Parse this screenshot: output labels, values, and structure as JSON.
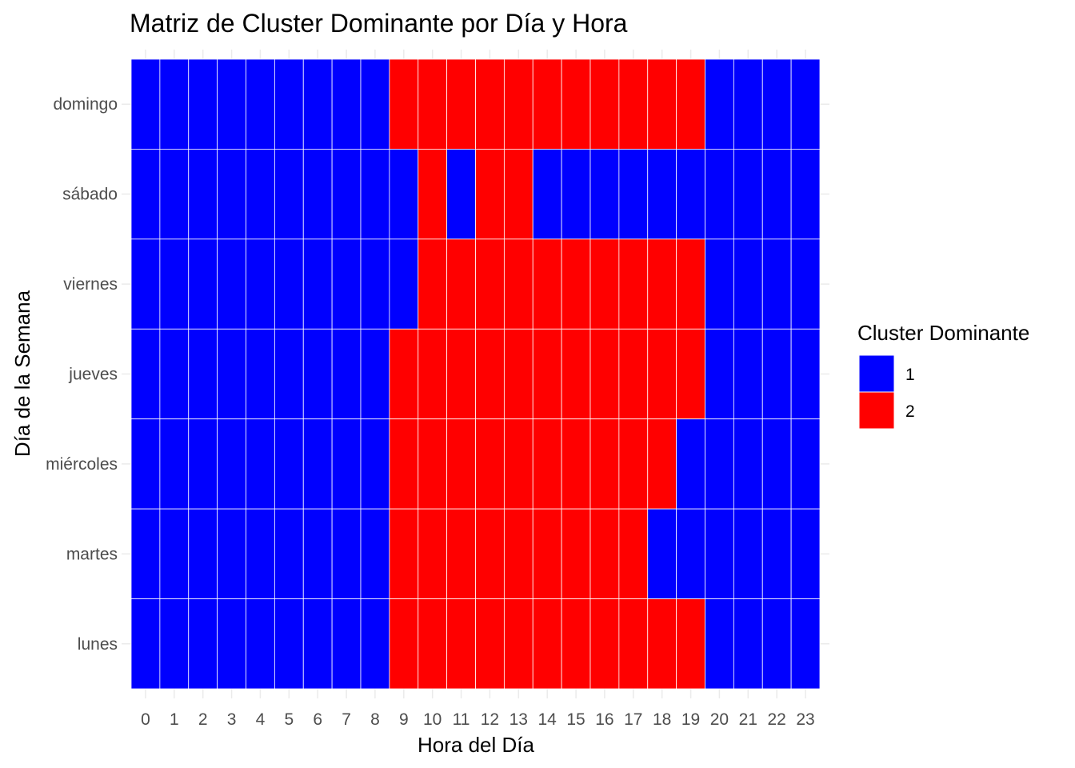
{
  "chart_data": {
    "type": "heatmap",
    "title": "Matriz de Cluster Dominante por Día y Hora",
    "xlabel": "Hora del Día",
    "ylabel": "Día de la Semana",
    "x": [
      "0",
      "1",
      "2",
      "3",
      "4",
      "5",
      "6",
      "7",
      "8",
      "9",
      "10",
      "11",
      "12",
      "13",
      "14",
      "15",
      "16",
      "17",
      "18",
      "19",
      "20",
      "21",
      "22",
      "23"
    ],
    "y": [
      "domingo",
      "sábado",
      "viernes",
      "jueves",
      "miércoles",
      "martes",
      "lunes"
    ],
    "values": [
      [
        1,
        1,
        1,
        1,
        1,
        1,
        1,
        1,
        1,
        2,
        2,
        2,
        2,
        2,
        2,
        2,
        2,
        2,
        2,
        2,
        1,
        1,
        1,
        1
      ],
      [
        1,
        1,
        1,
        1,
        1,
        1,
        1,
        1,
        1,
        1,
        2,
        1,
        2,
        2,
        1,
        1,
        1,
        1,
        1,
        1,
        1,
        1,
        1,
        1
      ],
      [
        1,
        1,
        1,
        1,
        1,
        1,
        1,
        1,
        1,
        1,
        2,
        2,
        2,
        2,
        2,
        2,
        2,
        2,
        2,
        2,
        1,
        1,
        1,
        1
      ],
      [
        1,
        1,
        1,
        1,
        1,
        1,
        1,
        1,
        1,
        2,
        2,
        2,
        2,
        2,
        2,
        2,
        2,
        2,
        2,
        2,
        1,
        1,
        1,
        1
      ],
      [
        1,
        1,
        1,
        1,
        1,
        1,
        1,
        1,
        1,
        2,
        2,
        2,
        2,
        2,
        2,
        2,
        2,
        2,
        2,
        1,
        1,
        1,
        1,
        1
      ],
      [
        1,
        1,
        1,
        1,
        1,
        1,
        1,
        1,
        1,
        2,
        2,
        2,
        2,
        2,
        2,
        2,
        2,
        2,
        1,
        1,
        1,
        1,
        1,
        1
      ],
      [
        1,
        1,
        1,
        1,
        1,
        1,
        1,
        1,
        1,
        2,
        2,
        2,
        2,
        2,
        2,
        2,
        2,
        2,
        2,
        2,
        1,
        1,
        1,
        1
      ]
    ],
    "legend": {
      "title": "Cluster Dominante",
      "position": "right",
      "entries": [
        {
          "label": "1",
          "value": 1,
          "color": "#0000ff"
        },
        {
          "label": "2",
          "value": 2,
          "color": "#ff0000"
        }
      ]
    },
    "grid": true
  }
}
